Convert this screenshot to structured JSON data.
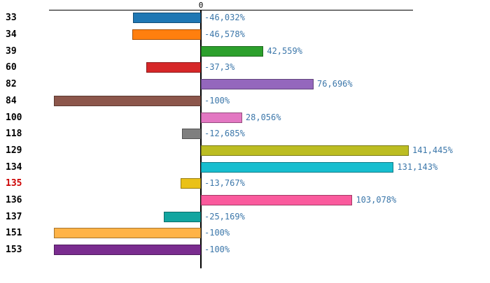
{
  "chart_data": {
    "type": "bar",
    "orientation": "horizontal",
    "title": "",
    "xlabel": "",
    "ylabel": "",
    "top_axis_label": "0",
    "xlim": [
      -103,
      150
    ],
    "grid": false,
    "legend": "none",
    "categories": [
      "33",
      "34",
      "39",
      "60",
      "82",
      "84",
      "100",
      "118",
      "129",
      "134",
      "135",
      "136",
      "137",
      "151",
      "153"
    ],
    "values": [
      -46.032,
      -46.578,
      42.559,
      -37.3,
      76.696,
      -100,
      28.056,
      -12.685,
      141.445,
      131.143,
      -13.767,
      103.078,
      -25.169,
      -100,
      -100
    ],
    "value_labels": [
      "-46,032%",
      "-46,578%",
      "42,559%",
      "-37,3%",
      "76,696%",
      "-100%",
      "28,056%",
      "-12,685%",
      "141,445%",
      "131,143%",
      "-13,767%",
      "103,078%",
      "-25,169%",
      "-100%",
      "-100%"
    ],
    "bar_colors": [
      "#1f77b4",
      "#ff7f0e",
      "#2ca02c",
      "#d62728",
      "#9467bd",
      "#8c564b",
      "#e377c2",
      "#7f7f7f",
      "#bcbd22",
      "#17becf",
      "#eac117",
      "#fa5a9d",
      "#12a5a0",
      "#ffb347",
      "#7a2c8f"
    ],
    "category_label_color": "#000000",
    "highlighted_category": "135",
    "highlight_color": "#cc0000",
    "value_label_color": "#3c77aa",
    "axis_color": "#000000"
  }
}
